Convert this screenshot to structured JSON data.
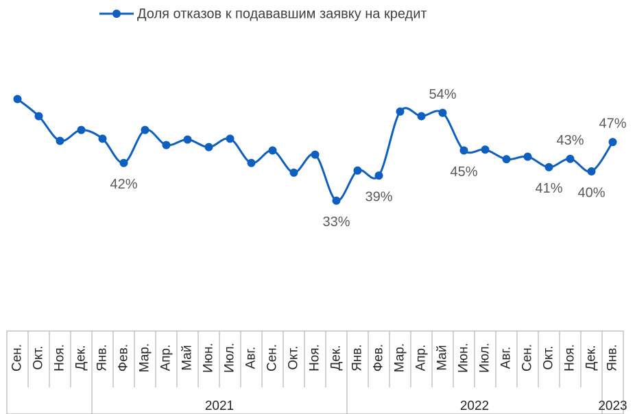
{
  "chart_data": {
    "type": "line",
    "categories": [
      "Сен.",
      "Окт.",
      "Ноя.",
      "Дек.",
      "Янв.",
      "Фев.",
      "Мар.",
      "Апр.",
      "Май",
      "Июн.",
      "Июл.",
      "Авг.",
      "Сен.",
      "Окт.",
      "Ноя.",
      "Дек.",
      "Янв.",
      "Фев.",
      "Мар.",
      "Апр.",
      "Май",
      "Июн.",
      "Июл.",
      "Авг.",
      "Сен.",
      "Окт.",
      "Ноя.",
      "Дек.",
      "Янв."
    ],
    "groups": [
      {
        "label": "2021",
        "span": [
          4,
          15
        ]
      },
      {
        "label": "2022",
        "span": [
          16,
          27
        ]
      },
      {
        "label": "2023",
        "span": [
          28,
          28
        ]
      }
    ],
    "series": [
      {
        "name": "Доля отказов к подававшим заявку на кредит",
        "color": "#0f5fbf",
        "values": [
          57.3,
          53.2,
          47.3,
          49.9,
          47.8,
          42,
          49.9,
          46.3,
          47.6,
          45.8,
          47.8,
          42,
          45,
          39.7,
          44,
          33,
          40.2,
          39,
          54.3,
          53.2,
          54,
          45,
          45.2,
          42.9,
          43.5,
          41,
          43,
          40,
          47
        ],
        "value_labels": [
          null,
          null,
          null,
          null,
          null,
          "42%",
          null,
          null,
          null,
          null,
          null,
          null,
          null,
          null,
          null,
          "33%",
          null,
          "39%",
          null,
          null,
          "54%",
          "45%",
          null,
          null,
          null,
          "41%",
          "43%",
          "40%",
          "47%"
        ]
      }
    ],
    "ylim": [
      0,
      60
    ]
  }
}
